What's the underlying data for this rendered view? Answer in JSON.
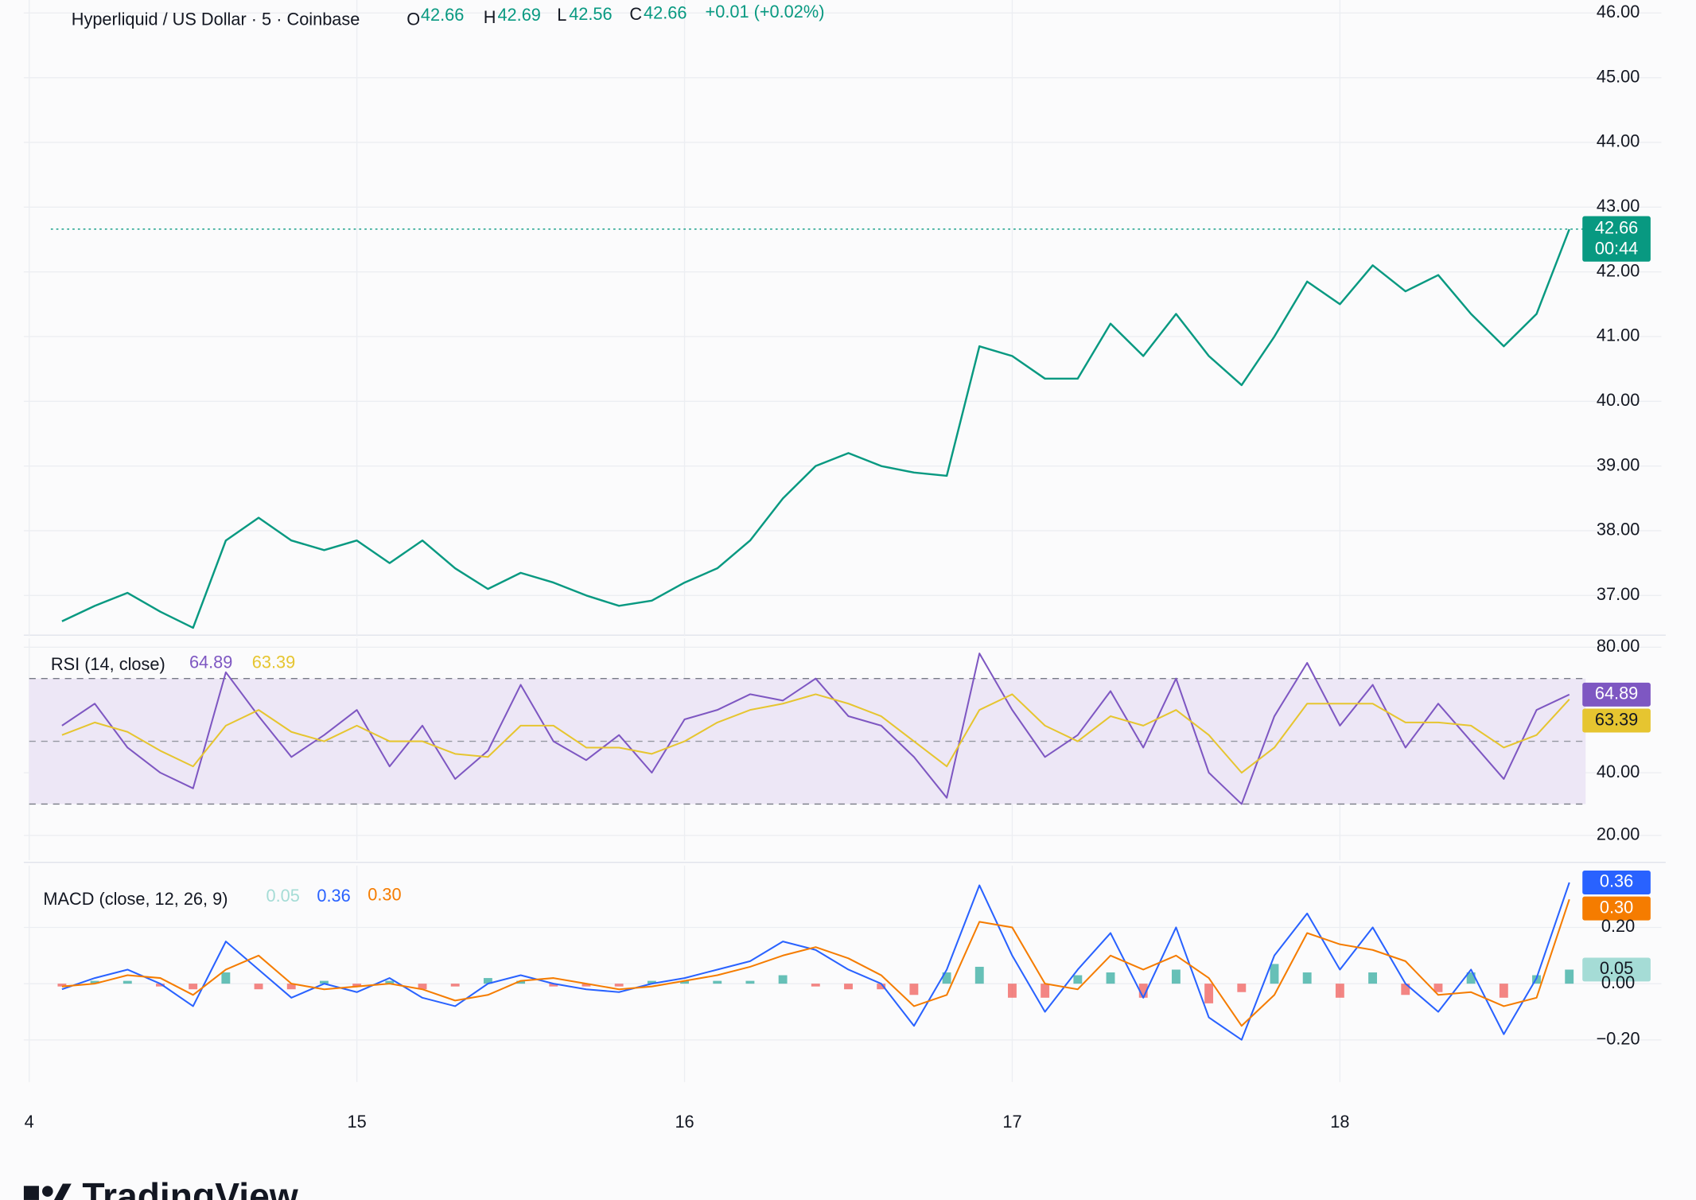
{
  "chart_data": [
    {
      "type": "line",
      "title": "Hyperliquid / US Dollar · 5 · Coinbase",
      "ohlc": [
        [
          "O",
          "42.66"
        ],
        [
          "H",
          "42.69"
        ],
        [
          "L",
          "42.56"
        ],
        [
          "C",
          "42.66"
        ]
      ],
      "change": "+0.01 (+0.02%)",
      "countdown": "00:44",
      "color": "#089981",
      "x": [
        14.1,
        14.2,
        14.3,
        14.4,
        14.5,
        14.6,
        14.7,
        14.8,
        14.9,
        15.0,
        15.1,
        15.2,
        15.3,
        15.4,
        15.5,
        15.6,
        15.7,
        15.8,
        15.9,
        16.0,
        16.1,
        16.2,
        16.3,
        16.4,
        16.5,
        16.6,
        16.7,
        16.8,
        16.9,
        17.0,
        17.1,
        17.2,
        17.3,
        17.4,
        17.5,
        17.6,
        17.7,
        17.8,
        17.9,
        18.0,
        18.1,
        18.2,
        18.3,
        18.4,
        18.5,
        18.6,
        18.7
      ],
      "values": [
        36.6,
        36.84,
        37.04,
        36.75,
        36.5,
        37.85,
        38.2,
        37.85,
        37.7,
        37.85,
        37.5,
        37.85,
        37.42,
        37.1,
        37.35,
        37.2,
        37.0,
        36.84,
        36.92,
        37.2,
        37.42,
        37.85,
        38.5,
        39.0,
        39.2,
        39.0,
        38.9,
        38.85,
        40.85,
        40.7,
        40.35,
        40.35,
        41.2,
        40.7,
        41.35,
        40.7,
        40.25,
        41.0,
        41.85,
        41.5,
        42.1,
        41.7,
        41.95,
        41.35,
        40.85,
        41.35,
        42.66
      ],
      "xlim": [
        14,
        18.75
      ],
      "xticks": [
        {
          "value": 14,
          "label": "4"
        },
        15,
        16,
        17,
        18
      ],
      "ylim": [
        36.37,
        46.2
      ],
      "yticks": [
        {
          "value": 37,
          "label": "37.00"
        },
        {
          "value": 38,
          "label": "38.00"
        },
        {
          "value": 39,
          "label": "39.00"
        },
        {
          "value": 40,
          "label": "40.00"
        },
        {
          "value": 41,
          "label": "41.00"
        },
        {
          "value": 42,
          "label": "42.00"
        },
        {
          "value": 43,
          "label": "43.00"
        },
        {
          "value": 44,
          "label": "44.00"
        },
        {
          "value": 45,
          "label": "45.00"
        },
        {
          "value": 46,
          "label": "46.00"
        }
      ],
      "grid": true,
      "brand": "TradingView"
    },
    {
      "type": "line",
      "title": "RSI (14, close)",
      "ylim": [
        12.1,
        82.8
      ],
      "yticks": [
        {
          "value": 20,
          "label": "20.00"
        },
        {
          "value": 40,
          "label": "40.00"
        },
        {
          "value": 80,
          "label": "80.00"
        }
      ],
      "band": [
        30,
        70
      ],
      "midline": 50,
      "band_color": "#ede7f6",
      "series": [
        {
          "color": "#7e57c2",
          "values": [
            55,
            62,
            48,
            40,
            35,
            72,
            58,
            45,
            52,
            60,
            42,
            55,
            38,
            47,
            68,
            50,
            44,
            52,
            40,
            57,
            60,
            65,
            63,
            70,
            58,
            55,
            45,
            32,
            78,
            60,
            45,
            52,
            66,
            48,
            70,
            40,
            30,
            58,
            75,
            55,
            68,
            48,
            62,
            50,
            38,
            60,
            64.89
          ]
        },
        {
          "color": "#e6c530",
          "values": [
            52,
            56,
            53,
            47,
            42,
            55,
            60,
            53,
            50,
            55,
            50,
            50,
            46,
            45,
            55,
            55,
            48,
            48,
            46,
            50,
            56,
            60,
            62,
            65,
            62,
            58,
            50,
            42,
            60,
            65,
            55,
            50,
            58,
            55,
            60,
            52,
            40,
            48,
            62,
            62,
            62,
            56,
            56,
            55,
            48,
            52,
            63.39
          ]
        }
      ]
    },
    {
      "type": "line",
      "title": "MACD (close, 12, 26, 9)",
      "ylim": [
        -0.35,
        0.42
      ],
      "yticks": [
        {
          "value": -0.2,
          "label": "−0.20"
        },
        {
          "value": 0,
          "label": "0.00"
        },
        {
          "value": 0.2,
          "label": "0.20"
        }
      ],
      "series": [
        {
          "type": "histogram",
          "up_color": "#26a69a",
          "down_color": "#ef5350",
          "color": "#a5dcd6",
          "values": [
            -0.01,
            0.01,
            0.01,
            -0.01,
            -0.02,
            0.04,
            -0.02,
            -0.02,
            0.01,
            -0.01,
            0.01,
            -0.02,
            -0.01,
            0.02,
            0.01,
            -0.01,
            -0.01,
            -0.01,
            0.01,
            0.01,
            0.01,
            0.01,
            0.03,
            -0.01,
            -0.02,
            -0.02,
            -0.04,
            0.04,
            0.06,
            -0.05,
            -0.05,
            0.03,
            0.04,
            -0.05,
            0.05,
            -0.07,
            -0.03,
            0.07,
            0.04,
            -0.05,
            0.04,
            -0.04,
            -0.03,
            0.04,
            -0.05,
            0.03,
            0.05
          ]
        },
        {
          "color": "#2962ff",
          "values": [
            -0.02,
            0.02,
            0.05,
            0.0,
            -0.08,
            0.15,
            0.05,
            -0.05,
            0.0,
            -0.03,
            0.02,
            -0.05,
            -0.08,
            0.0,
            0.03,
            0.0,
            -0.02,
            -0.03,
            0.0,
            0.02,
            0.05,
            0.08,
            0.15,
            0.12,
            0.05,
            0.0,
            -0.15,
            0.05,
            0.35,
            0.1,
            -0.1,
            0.05,
            0.18,
            -0.05,
            0.2,
            -0.12,
            -0.2,
            0.1,
            0.25,
            0.05,
            0.2,
            0.0,
            -0.1,
            0.05,
            -0.18,
            0.02,
            0.36
          ]
        },
        {
          "color": "#f57c00",
          "last_value_label": "0.30",
          "values": [
            -0.01,
            0.0,
            0.03,
            0.02,
            -0.04,
            0.05,
            0.1,
            0.0,
            -0.02,
            -0.01,
            0.0,
            -0.02,
            -0.06,
            -0.04,
            0.01,
            0.02,
            0.0,
            -0.02,
            -0.01,
            0.01,
            0.03,
            0.06,
            0.1,
            0.13,
            0.09,
            0.03,
            -0.08,
            -0.04,
            0.22,
            0.2,
            0.0,
            -0.02,
            0.1,
            0.05,
            0.1,
            0.02,
            -0.15,
            -0.04,
            0.18,
            0.14,
            0.12,
            0.08,
            -0.04,
            -0.03,
            -0.08,
            -0.05,
            0.3
          ]
        }
      ]
    }
  ]
}
